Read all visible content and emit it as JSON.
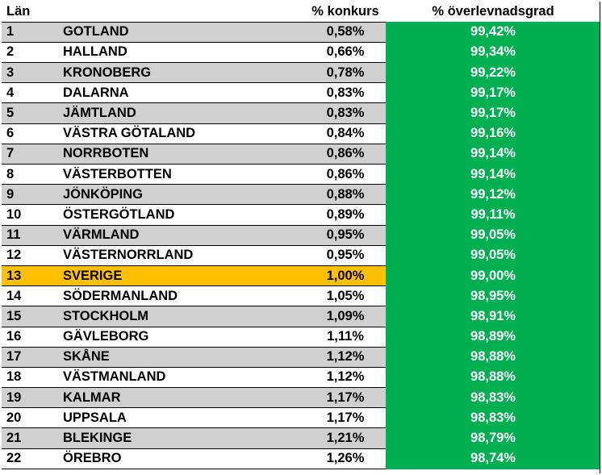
{
  "header": {
    "col_rank": "Län",
    "col_pct": "% konkurs",
    "col_survival": "% överlevnadsgrad"
  },
  "rows": [
    {
      "rank": "1",
      "name": "GOTLAND",
      "pct": "0,58%",
      "survival": "99,42%"
    },
    {
      "rank": "2",
      "name": "HALLAND",
      "pct": "0,66%",
      "survival": "99,34%"
    },
    {
      "rank": "3",
      "name": "KRONOBERG",
      "pct": "0,78%",
      "survival": "99,22%"
    },
    {
      "rank": "4",
      "name": "DALARNA",
      "pct": "0,83%",
      "survival": "99,17%"
    },
    {
      "rank": "5",
      "name": "JÄMTLAND",
      "pct": "0,83%",
      "survival": "99,17%"
    },
    {
      "rank": "6",
      "name": "VÄSTRA GÖTALAND",
      "pct": "0,84%",
      "survival": "99,16%"
    },
    {
      "rank": "7",
      "name": "NORRBOTEN",
      "pct": "0,86%",
      "survival": "99,14%"
    },
    {
      "rank": "8",
      "name": "VÄSTERBOTTEN",
      "pct": "0,86%",
      "survival": "99,14%"
    },
    {
      "rank": "9",
      "name": "JÖNKÖPING",
      "pct": "0,88%",
      "survival": "99,12%"
    },
    {
      "rank": "10",
      "name": "ÖSTERGÖTLAND",
      "pct": "0,89%",
      "survival": "99,11%"
    },
    {
      "rank": "11",
      "name": "VÄRMLAND",
      "pct": "0,95%",
      "survival": "99,05%"
    },
    {
      "rank": "12",
      "name": "VÄSTERNORRLAND",
      "pct": "0,95%",
      "survival": "99,05%"
    },
    {
      "rank": "13",
      "name": "SVERIGE",
      "pct": "1,00%",
      "survival": "99,00%"
    },
    {
      "rank": "14",
      "name": "SÖDERMANLAND",
      "pct": "1,05%",
      "survival": "98,95%"
    },
    {
      "rank": "15",
      "name": "STOCKHOLM",
      "pct": "1,09%",
      "survival": "98,91%"
    },
    {
      "rank": "16",
      "name": "GÄVLEBORG",
      "pct": "1,11%",
      "survival": "98,89%"
    },
    {
      "rank": "17",
      "name": "SKÅNE",
      "pct": "1,12%",
      "survival": "98,88%"
    },
    {
      "rank": "18",
      "name": "VÄSTMANLAND",
      "pct": "1,12%",
      "survival": "98,88%"
    },
    {
      "rank": "19",
      "name": "KALMAR",
      "pct": "1,17%",
      "survival": "98,83%"
    },
    {
      "rank": "20",
      "name": "UPPSALA",
      "pct": "1,17%",
      "survival": "98,83%"
    },
    {
      "rank": "21",
      "name": "BLEKINGE",
      "pct": "1,21%",
      "survival": "98,79%"
    },
    {
      "rank": "22",
      "name": "ÖREBRO",
      "pct": "1,26%",
      "survival": "98,74%"
    }
  ],
  "highlight_rank": "13",
  "colors": {
    "stripe_gray": "#d0d0d0",
    "highlight_orange": "#ffc000",
    "survival_green": "#00b050",
    "survival_text": "#ffffff"
  }
}
